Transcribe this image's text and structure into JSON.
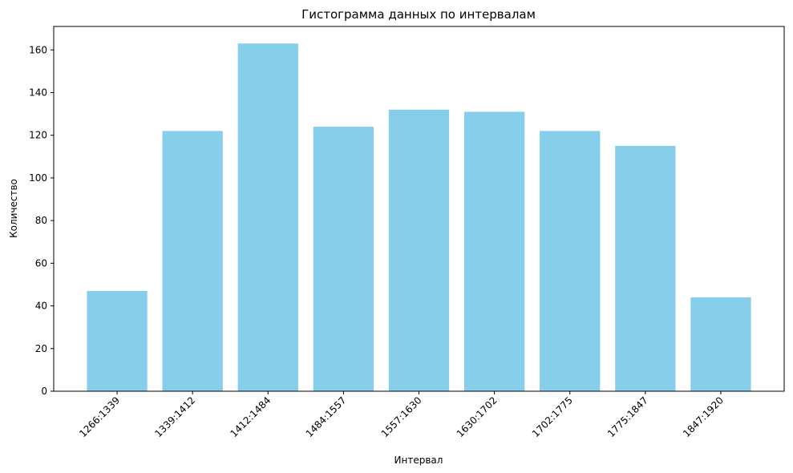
{
  "chart_data": {
    "type": "bar",
    "title": "Гистограмма данных по интервалам",
    "xlabel": "Интервал",
    "ylabel": "Количество",
    "categories": [
      "1266:1339",
      "1339:1412",
      "1412:1484",
      "1484:1557",
      "1557:1630",
      "1630:1702",
      "1702:1775",
      "1775:1847",
      "1847:1920"
    ],
    "values": [
      47,
      122,
      163,
      124,
      132,
      131,
      122,
      115,
      44
    ],
    "ylim": [
      0,
      171
    ],
    "yticks": [
      0,
      20,
      40,
      60,
      80,
      100,
      120,
      140,
      160
    ],
    "bar_color": "#87ceeb",
    "grid": false
  }
}
